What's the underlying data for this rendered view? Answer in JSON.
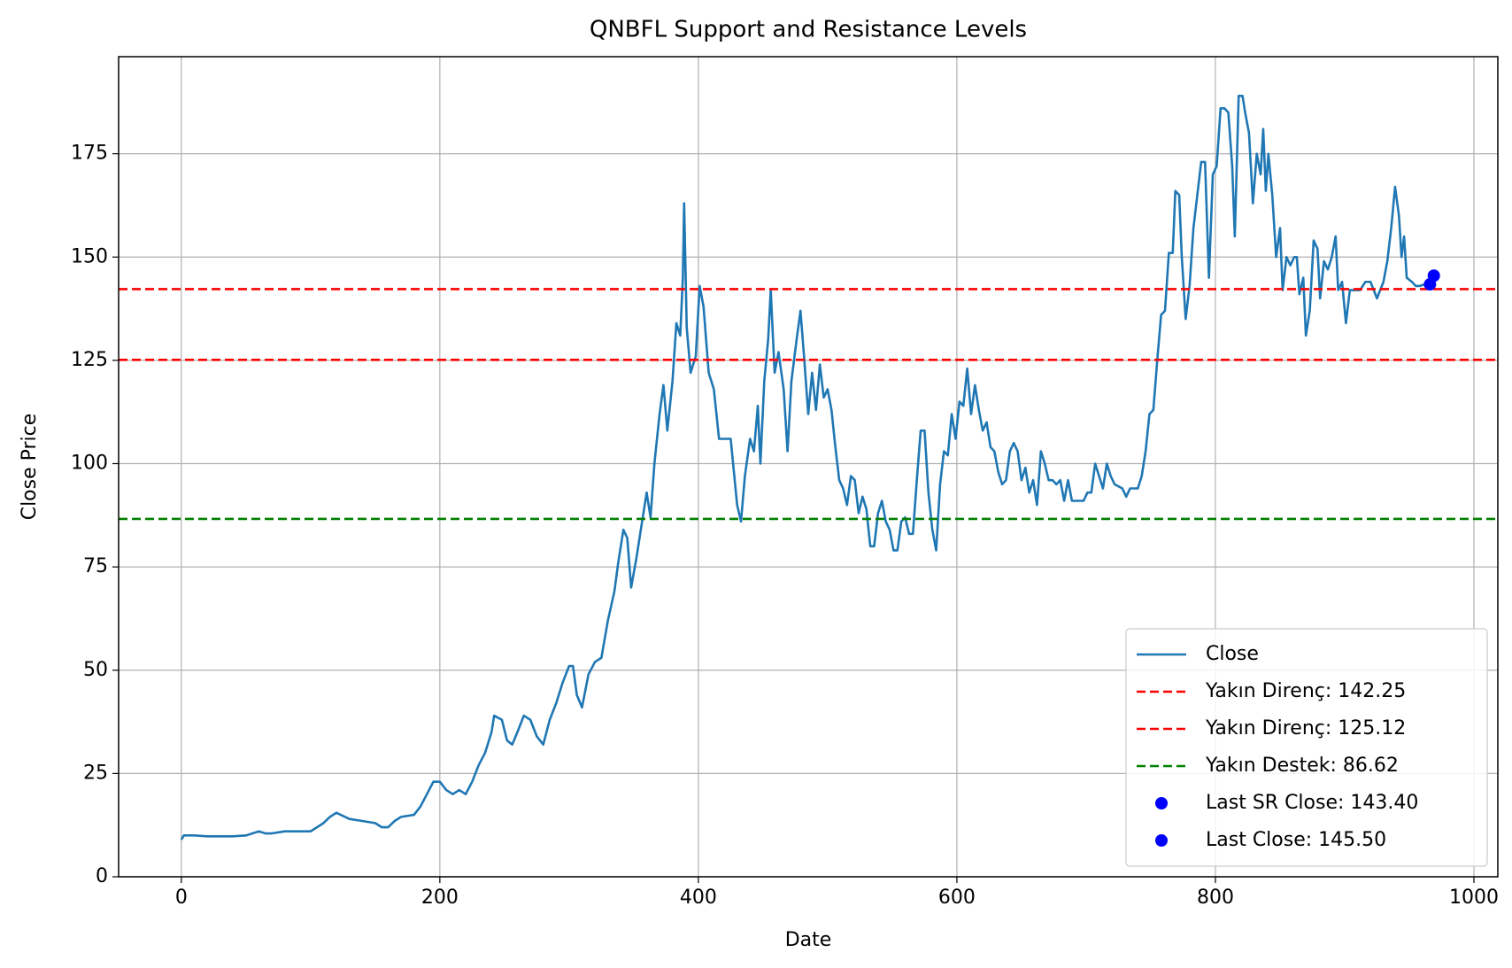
{
  "chart_data": {
    "type": "line",
    "title": "QNBFL Support and Resistance Levels",
    "x_label": "Date",
    "y_label": "Close Price",
    "xlim": [
      -48.5,
      1018.5
    ],
    "ylim": [
      0,
      198.5
    ],
    "xticks": [
      0,
      200,
      400,
      600,
      800,
      1000
    ],
    "yticks": [
      0,
      25,
      50,
      75,
      100,
      125,
      150,
      175
    ],
    "grid": true,
    "legend": "lower right",
    "series": [
      {
        "name": "Close",
        "type": "line",
        "color": "#1f77b4",
        "x": [
          0,
          2,
          5,
          10,
          20,
          30,
          40,
          50,
          60,
          65,
          70,
          80,
          90,
          100,
          110,
          115,
          120,
          130,
          140,
          150,
          155,
          160,
          165,
          170,
          180,
          185,
          190,
          195,
          200,
          205,
          210,
          215,
          220,
          225,
          230,
          235,
          240,
          242,
          248,
          252,
          256,
          260,
          265,
          270,
          275,
          280,
          285,
          290,
          295,
          300,
          303,
          306,
          310,
          315,
          320,
          325,
          330,
          335,
          338,
          342,
          345,
          348,
          352,
          356,
          360,
          363,
          366,
          370,
          373,
          376,
          380,
          383,
          386,
          388,
          389,
          391,
          394,
          398,
          401,
          404,
          408,
          412,
          416,
          425,
          430,
          433,
          436,
          440,
          443,
          446,
          448,
          451,
          454,
          456,
          459,
          462,
          466,
          469,
          472,
          476,
          479,
          482,
          485,
          488,
          491,
          494,
          497,
          500,
          503,
          506,
          509,
          512,
          515,
          518,
          521,
          524,
          527,
          530,
          533,
          536,
          539,
          542,
          545,
          548,
          551,
          554,
          557,
          560,
          563,
          566,
          569,
          572,
          575,
          578,
          581,
          584,
          587,
          590,
          593,
          596,
          599,
          602,
          605,
          608,
          611,
          614,
          617,
          620,
          623,
          626,
          629,
          632,
          635,
          638,
          641,
          644,
          647,
          650,
          653,
          656,
          659,
          662,
          665,
          668,
          671,
          674,
          677,
          680,
          683,
          686,
          689,
          692,
          698,
          701,
          704,
          707,
          710,
          713,
          716,
          719,
          722,
          728,
          731,
          734,
          740,
          743,
          746,
          749,
          752,
          755,
          758,
          761,
          764,
          767,
          769,
          772,
          774,
          777,
          780,
          783,
          786,
          789,
          792,
          795,
          798,
          801,
          804,
          807,
          810,
          813,
          815,
          818,
          821,
          823,
          826,
          829,
          832,
          835,
          837,
          839,
          841,
          844,
          847,
          850,
          852,
          855,
          858,
          861,
          863,
          865,
          868,
          870,
          873,
          876,
          879,
          881,
          884,
          887,
          890,
          893,
          895,
          898,
          901,
          904,
          908,
          912,
          916,
          920,
          925,
          930,
          933,
          936,
          939,
          942,
          944,
          946,
          948,
          952,
          955,
          958,
          962,
          965,
          969
        ],
        "values": [
          9,
          10,
          10,
          10,
          9.8,
          9.8,
          9.8,
          10,
          11,
          10.5,
          10.5,
          11,
          11,
          11,
          13,
          14.5,
          15.5,
          14,
          13.5,
          13,
          12,
          12,
          13.5,
          14.5,
          15,
          17,
          20,
          23,
          23,
          21,
          20,
          21,
          20,
          23,
          27,
          30,
          35,
          39,
          38,
          33,
          32,
          35,
          39,
          38,
          34,
          32,
          38,
          42,
          47,
          51,
          51,
          44,
          41,
          49,
          52,
          53,
          62,
          69,
          76,
          84,
          82,
          70,
          77,
          85,
          93,
          87,
          100,
          112,
          119,
          108,
          120,
          134,
          131,
          145,
          163,
          133,
          122,
          126,
          143,
          138,
          122,
          118,
          106,
          106,
          90,
          86,
          97,
          106,
          103,
          114,
          100,
          120,
          130,
          142,
          122,
          127,
          118,
          103,
          120,
          130,
          137,
          125,
          112,
          122,
          113,
          124,
          116,
          118,
          113,
          104,
          96,
          94,
          90,
          97,
          96,
          88,
          92,
          89,
          80,
          80,
          88,
          91,
          86,
          84,
          79,
          79,
          86,
          87,
          83,
          83,
          96,
          108,
          108,
          93,
          84,
          79,
          95,
          103,
          102,
          112,
          106,
          115,
          114,
          123,
          112,
          119,
          113,
          108,
          110,
          104,
          103,
          98,
          95,
          96,
          103,
          105,
          103,
          96,
          99,
          93,
          96,
          90,
          103,
          100,
          96,
          96,
          95,
          96,
          91,
          96,
          91,
          91,
          91,
          93,
          93,
          100,
          97,
          94,
          100,
          97,
          95,
          94,
          92,
          94,
          94,
          97,
          103,
          112,
          113,
          125,
          136,
          137,
          151,
          151,
          166,
          165,
          150,
          135,
          143,
          157,
          165,
          173,
          173,
          145,
          170,
          172,
          186,
          186,
          185,
          172,
          155,
          189,
          189,
          185,
          180,
          163,
          175,
          170,
          181,
          166,
          175,
          165,
          150,
          157,
          142,
          150,
          148,
          150,
          150,
          141,
          145,
          131,
          137,
          154,
          152,
          140,
          149,
          147,
          150,
          155,
          142,
          144,
          134,
          142,
          142,
          142,
          144,
          144,
          140,
          144,
          149,
          157,
          167,
          160,
          150,
          155,
          145,
          144,
          143,
          143,
          143.4,
          144,
          145.5
        ]
      },
      {
        "name": "Yakın Direnç: 142.25",
        "type": "hline",
        "color": "#ff0000",
        "values": [
          142.25
        ]
      },
      {
        "name": "Yakın Direnç: 125.12",
        "type": "hline",
        "color": "#ff0000",
        "values": [
          125.12
        ]
      },
      {
        "name": "Yakın Destek: 86.62",
        "type": "hline",
        "color": "#008000",
        "values": [
          86.62
        ]
      },
      {
        "name": "Last SR Close: 143.40",
        "type": "scatter",
        "color": "#0000ff",
        "x": [
          966
        ],
        "values": [
          143.4
        ]
      },
      {
        "name": "Last Close: 145.50",
        "type": "scatter",
        "color": "#0000ff",
        "x": [
          969
        ],
        "values": [
          145.5
        ]
      }
    ]
  }
}
